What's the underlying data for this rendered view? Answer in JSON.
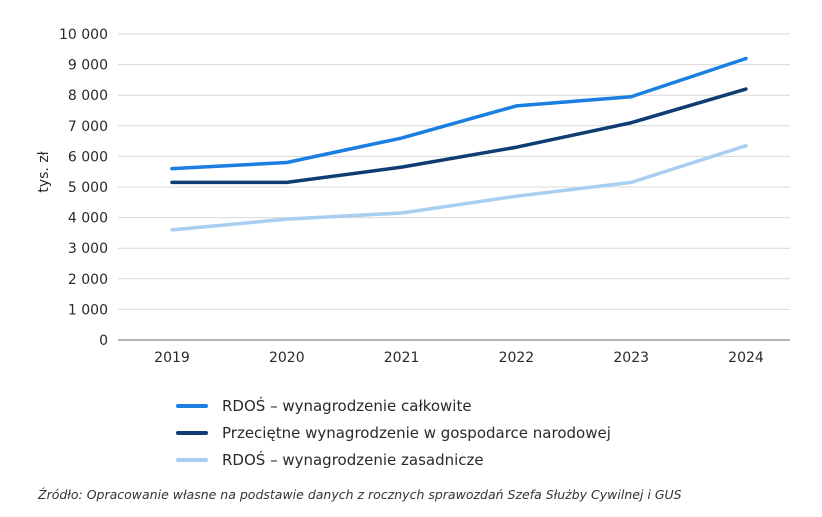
{
  "chart_data": {
    "type": "line",
    "title": "",
    "xlabel": "",
    "ylabel": "tys. zł",
    "categories": [
      "2019",
      "2020",
      "2021",
      "2022",
      "2023",
      "2024"
    ],
    "ylim": [
      0,
      10000
    ],
    "yticks": [
      0,
      1000,
      2000,
      3000,
      4000,
      5000,
      6000,
      7000,
      8000,
      9000,
      10000
    ],
    "ytick_labels": [
      "0",
      "1 000",
      "2 000",
      "3 000",
      "4 000",
      "5 000",
      "6 000",
      "7 000",
      "8 000",
      "9 000",
      "10 000"
    ],
    "grid": "horizontal",
    "legend_position": "bottom",
    "series": [
      {
        "name": "RDOŚ – wynagrodzenie całkowite",
        "color": "#1a7fe0",
        "values": [
          5600,
          5800,
          6600,
          7650,
          7950,
          9200
        ]
      },
      {
        "name": "Przeciętne wynagrodzenie w gospodarce narodowej",
        "color": "#0f3d73",
        "values": [
          5150,
          5150,
          5650,
          6300,
          7100,
          8200
        ]
      },
      {
        "name": "RDOŚ – wynagrodzenie zasadnicze",
        "color": "#a8cff2",
        "values": [
          3600,
          3950,
          4150,
          4700,
          5150,
          6350
        ]
      }
    ]
  },
  "source": "Źródło: Opracowanie własne na podstawie danych z rocznych sprawozdań Szefa Służby Cywilnej i GUS"
}
